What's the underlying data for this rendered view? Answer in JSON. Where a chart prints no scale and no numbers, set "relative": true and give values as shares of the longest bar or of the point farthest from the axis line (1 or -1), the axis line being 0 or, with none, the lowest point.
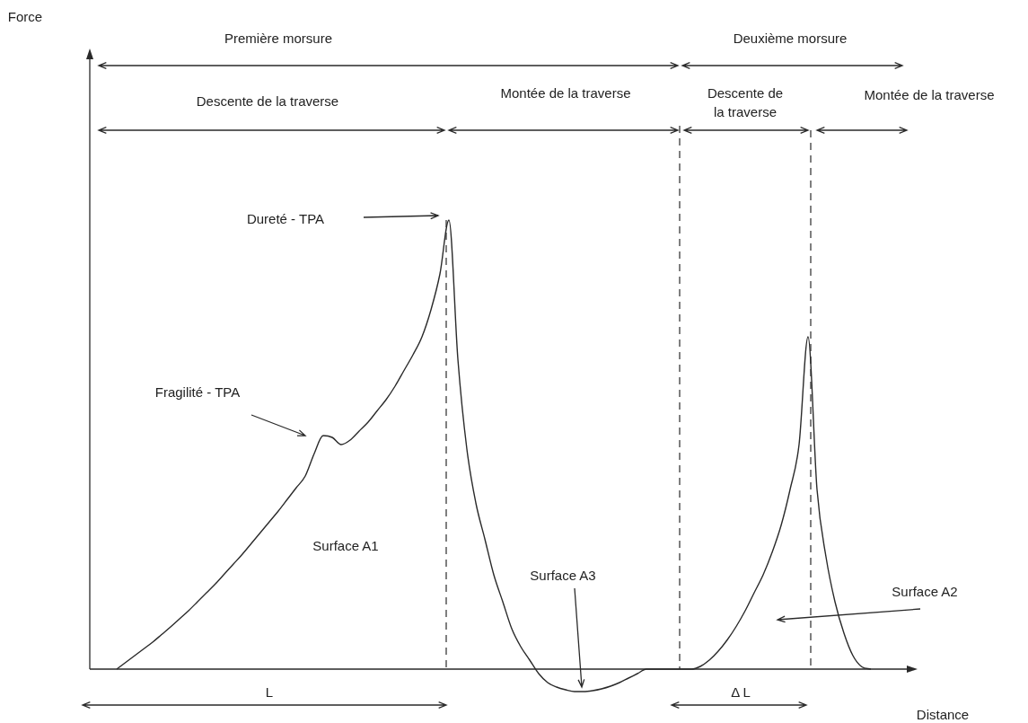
{
  "chart_data": {
    "type": "line",
    "relative": true,
    "xlabel": "Distance",
    "color": "#2a2a2a",
    "marker": "none",
    "categories": [
      null,
      null,
      null,
      null,
      null,
      null,
      null,
      null,
      null,
      null,
      null,
      null,
      null,
      null,
      null,
      null,
      null,
      null,
      null,
      null,
      null,
      null,
      null,
      null,
      null,
      null,
      null,
      null,
      null,
      null,
      null,
      null,
      null,
      null,
      null,
      null,
      null,
      null,
      null,
      null,
      null,
      null,
      null,
      null,
      null,
      null,
      null,
      null,
      null,
      null,
      null,
      null,
      null,
      null,
      null,
      null,
      null,
      null,
      null,
      null,
      null,
      null,
      null,
      null,
      null,
      null,
      null,
      null,
      null,
      null,
      null,
      null,
      null,
      null,
      null,
      null,
      null,
      null,
      null,
      null,
      null,
      null,
      null,
      null,
      null,
      null,
      null,
      null,
      null,
      null,
      null
    ],
    "values": [
      null,
      null,
      null,
      0,
      0.015,
      0.03,
      0.045,
      0.06,
      0.077,
      0.094,
      0.112,
      0.13,
      0.15,
      0.17,
      0.19,
      0.212,
      0.234,
      0.256,
      0.28,
      0.304,
      0.328,
      0.352,
      0.378,
      0.404,
      0.43,
      0.48,
      0.52,
      0.516,
      0.5,
      0.51,
      0.53,
      0.55,
      0.575,
      0.6,
      0.63,
      0.665,
      0.7,
      0.74,
      0.8,
      0.88,
      1.0,
      0.69,
      0.49,
      0.37,
      0.29,
      0.21,
      0.15,
      0.09,
      0.05,
      0.02,
      -0.01,
      -0.03,
      -0.04,
      -0.046,
      -0.05,
      -0.05,
      -0.048,
      -0.044,
      -0.038,
      -0.03,
      -0.02,
      -0.01,
      0,
      0,
      0,
      0,
      0,
      0,
      0.006,
      0.02,
      0.04,
      0.065,
      0.095,
      0.13,
      0.17,
      0.21,
      0.26,
      0.32,
      0.4,
      0.5,
      0.74,
      0.4,
      0.25,
      0.15,
      0.08,
      0.03,
      0.005,
      0,
      null,
      null,
      null
    ],
    "annotations": [
      "Première morsure",
      "Deuxième morsure",
      "Descente de la traverse",
      "Montée de la traverse",
      "Descente de la traverse",
      "Montée de la traverse",
      "Dureté - TPA",
      "Fragilité - TPA",
      "Surface A1",
      "Surface A3",
      "Surface A2",
      "L",
      "Δ L",
      "Force"
    ]
  }
}
